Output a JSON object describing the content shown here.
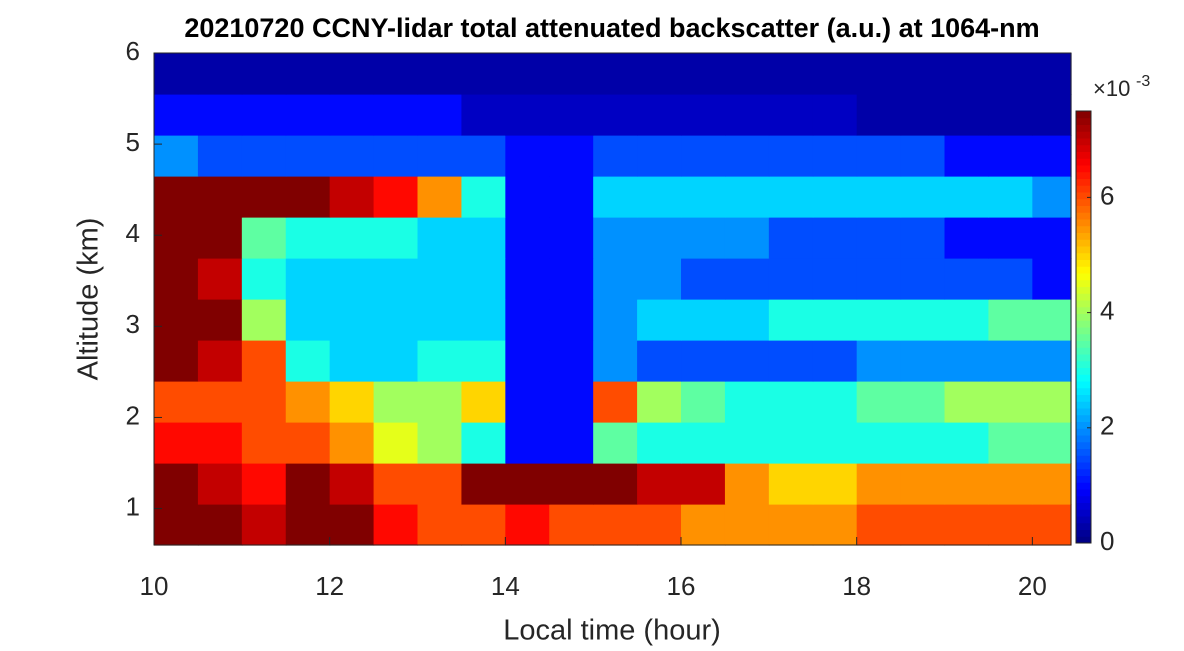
{
  "chart_data": {
    "type": "heatmap",
    "title": "20210720 CCNY-lidar total attenuated backscatter (a.u.) at 1064-nm",
    "x_label": "Local time (hour)",
    "y_label": "Altitude (km)",
    "x": [
      10,
      10.5,
      11,
      11.5,
      12,
      12.5,
      13,
      13.5,
      14,
      14.5,
      15,
      15.5,
      16,
      16.5,
      17,
      17.5,
      18,
      18.5,
      19,
      19.5,
      20,
      20.44
    ],
    "y": [
      0.6,
      1.05,
      1.5,
      1.95,
      2.4,
      2.85,
      3.3,
      3.75,
      4.2,
      4.65,
      5.1,
      5.55,
      6.0
    ],
    "z": [
      [
        7.5,
        7.5,
        7,
        7.5,
        7.5,
        6.5,
        6,
        6,
        6.5,
        6,
        6,
        6,
        5.5,
        5.5,
        5.5,
        5.5,
        6,
        6,
        6,
        6,
        6
      ],
      [
        7.5,
        7,
        6.5,
        7.5,
        7,
        6,
        6,
        7.5,
        7.5,
        7.5,
        7.5,
        7,
        7,
        5.5,
        5,
        5,
        5.5,
        5.5,
        5.5,
        5.5,
        5.5
      ],
      [
        6.5,
        6.5,
        6,
        6,
        5.5,
        4.5,
        4,
        3,
        1,
        1,
        3.5,
        3,
        3,
        3,
        3,
        3,
        3,
        3,
        3,
        3.5,
        3.5
      ],
      [
        6,
        6,
        6,
        5.5,
        5,
        4,
        4,
        5,
        1,
        1,
        6,
        4,
        3.5,
        3,
        3,
        3,
        3.5,
        3.5,
        4,
        4,
        4
      ],
      [
        7.5,
        7,
        6,
        3,
        2.5,
        2.5,
        3,
        3,
        1,
        1,
        2,
        1.5,
        1.5,
        1.5,
        1.5,
        1.5,
        2,
        2,
        2,
        2,
        2
      ],
      [
        7.5,
        7.5,
        4,
        2.5,
        2.5,
        2.5,
        2.5,
        2.5,
        1,
        1,
        2,
        2.5,
        2.5,
        2.5,
        3,
        3,
        3,
        3,
        3,
        3.5,
        3.5
      ],
      [
        7.5,
        7,
        3,
        2.5,
        2.5,
        2.5,
        2.5,
        2.5,
        1,
        1,
        2,
        2,
        1.5,
        1.5,
        1.5,
        1.5,
        1.5,
        1.5,
        1.5,
        1.5,
        1
      ],
      [
        7.5,
        7.5,
        3.5,
        3,
        3,
        3,
        2.5,
        2.5,
        1,
        1,
        2,
        2,
        2,
        2,
        1.5,
        1.5,
        1.5,
        1.5,
        1,
        1,
        1
      ],
      [
        7.5,
        7.5,
        7.5,
        7.5,
        7,
        6.5,
        5.5,
        3,
        1,
        1,
        2.5,
        2.5,
        2.5,
        2.5,
        2.5,
        2.5,
        2.5,
        2.5,
        2.5,
        2.5,
        2
      ],
      [
        2,
        1.5,
        1.5,
        1.5,
        1.5,
        1.5,
        1.5,
        1.5,
        1,
        1,
        1.5,
        1.5,
        1.5,
        1.5,
        1.5,
        1.5,
        1.5,
        1.5,
        1,
        1,
        1
      ],
      [
        1,
        1,
        1,
        1,
        1,
        1,
        1,
        0.5,
        0.5,
        0.5,
        0.5,
        0.5,
        0.5,
        0.5,
        0.5,
        0.5,
        0.3,
        0.3,
        0.3,
        0.3,
        0.3
      ],
      [
        0.3,
        0.3,
        0.3,
        0.3,
        0.3,
        0.3,
        0.3,
        0.3,
        0.3,
        0.3,
        0.3,
        0.3,
        0.3,
        0.3,
        0.3,
        0.3,
        0.3,
        0.3,
        0.3,
        0.3,
        0.3
      ]
    ],
    "xlim": [
      10,
      20.44
    ],
    "xticks": [
      10,
      12,
      14,
      16,
      18,
      20
    ],
    "ylim": [
      0.6,
      6
    ],
    "yticks": [
      1,
      2,
      3,
      4,
      5,
      6
    ],
    "colormap": "jet",
    "clim": [
      0,
      7.5
    ],
    "cticks": [
      0,
      2,
      4,
      6
    ],
    "colorbar_multiplier": "×10",
    "colorbar_exponent": "-3"
  }
}
